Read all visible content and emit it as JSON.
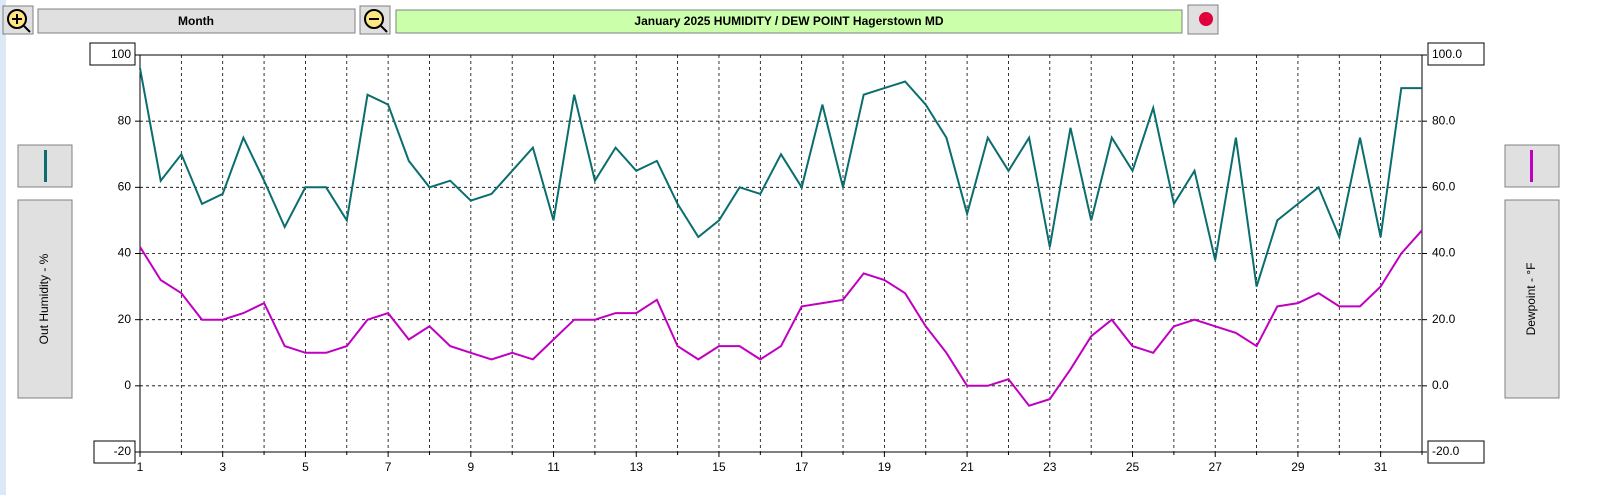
{
  "chart_data": {
    "type": "line",
    "toolbar_button": "Month",
    "title": "January 2025  HUMIDITY / DEW POINT  Hagerstown MD",
    "y_label": "Out Humidity - %",
    "y2_label": "Dewpoint - °F",
    "x": [
      1,
      1.5,
      2,
      2.5,
      3,
      3.5,
      4,
      4.5,
      5,
      5.5,
      6,
      6.5,
      7,
      7.5,
      8,
      8.5,
      9,
      9.5,
      10,
      10.5,
      11,
      11.5,
      12,
      12.5,
      13,
      13.5,
      14,
      14.5,
      15,
      15.5,
      16,
      16.5,
      17,
      17.5,
      18,
      18.5,
      19,
      19.5,
      20,
      20.5,
      21,
      21.5,
      22,
      22.5,
      23,
      23.5,
      24,
      24.5,
      25,
      25.5,
      26,
      26.5,
      27,
      27.5,
      28,
      28.5,
      29,
      29.5,
      30,
      30.5,
      31,
      31.5,
      32
    ],
    "series": [
      {
        "color": "#0a6e6e",
        "values": [
          96,
          62,
          70,
          55,
          58,
          75,
          62,
          48,
          60,
          60,
          50,
          88,
          85,
          68,
          60,
          62,
          56,
          58,
          65,
          72,
          50,
          88,
          62,
          72,
          65,
          68,
          55,
          45,
          50,
          60,
          58,
          70,
          60,
          85,
          60,
          88,
          90,
          92,
          85,
          75,
          52,
          75,
          65,
          75,
          42,
          78,
          50,
          75,
          65,
          84,
          55,
          65,
          38,
          75,
          30,
          50,
          55,
          60,
          45,
          75,
          45,
          90,
          90
        ]
      },
      {
        "color": "#c000c0",
        "axis": "y2",
        "values": [
          42,
          32,
          28,
          20,
          20,
          22,
          25,
          12,
          10,
          10,
          12,
          20,
          22,
          14,
          18,
          12,
          10,
          8,
          10,
          8,
          14,
          20,
          20,
          22,
          22,
          26,
          12,
          8,
          12,
          12,
          8,
          12,
          24,
          25,
          26,
          34,
          32,
          28,
          18,
          10,
          0,
          0,
          2,
          -6,
          -4,
          5,
          15,
          20,
          12,
          10,
          18,
          20,
          18,
          16,
          12,
          24,
          25,
          28,
          24,
          24,
          30,
          40,
          47
        ]
      }
    ],
    "xlim": [
      1,
      32
    ],
    "xticks": [
      1,
      3,
      5,
      7,
      9,
      11,
      13,
      15,
      17,
      19,
      21,
      23,
      25,
      27,
      29,
      31
    ],
    "x_minor_ticks": [
      2,
      4,
      6,
      8,
      10,
      12,
      14,
      16,
      18,
      20,
      22,
      24,
      26,
      28,
      30,
      32
    ],
    "ylim": [
      -20,
      100
    ],
    "yticks": [
      -20,
      0,
      20,
      40,
      60,
      80,
      100
    ],
    "y2lim": [
      -20,
      100
    ],
    "y2ticks": [
      {
        "value": -20,
        "label": "-20.0"
      },
      {
        "value": 0,
        "label": "0.0"
      },
      {
        "value": 20,
        "label": "20.0"
      },
      {
        "value": 40,
        "label": "40.0"
      },
      {
        "value": 60,
        "label": "60.0"
      },
      {
        "value": 80,
        "label": "80.0"
      },
      {
        "value": 100,
        "label": "100.0"
      }
    ],
    "grid": true
  }
}
